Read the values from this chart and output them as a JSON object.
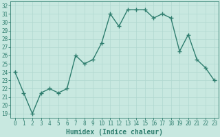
{
  "title": "",
  "xlabel": "Humidex (Indice chaleur)",
  "ylabel": "",
  "x": [
    0,
    1,
    2,
    3,
    4,
    5,
    6,
    7,
    8,
    9,
    10,
    11,
    12,
    13,
    14,
    15,
    16,
    17,
    18,
    19,
    20,
    21,
    22,
    23
  ],
  "y": [
    24,
    21.5,
    19,
    21.5,
    22,
    21.5,
    22,
    26,
    25,
    25.5,
    27.5,
    31,
    29.5,
    31.5,
    31.5,
    31.5,
    30.5,
    31,
    30.5,
    26.5,
    28.5,
    25.5,
    24.5,
    23
  ],
  "line_color": "#2e7d6e",
  "marker": "+",
  "marker_size": 4,
  "bg_color": "#c8e8e0",
  "grid_color": "#b0d8d0",
  "ylim": [
    18.5,
    32.5
  ],
  "yticks": [
    19,
    20,
    21,
    22,
    23,
    24,
    25,
    26,
    27,
    28,
    29,
    30,
    31,
    32
  ],
  "xlim": [
    -0.5,
    23.5
  ],
  "xticks": [
    0,
    1,
    2,
    3,
    4,
    5,
    6,
    7,
    8,
    9,
    10,
    11,
    12,
    13,
    14,
    15,
    16,
    17,
    18,
    19,
    20,
    21,
    22,
    23
  ],
  "tick_label_fontsize": 5.5,
  "xlabel_fontsize": 7,
  "tick_color": "#2e7d6e",
  "linewidth": 1.0,
  "markeredgewidth": 1.0
}
